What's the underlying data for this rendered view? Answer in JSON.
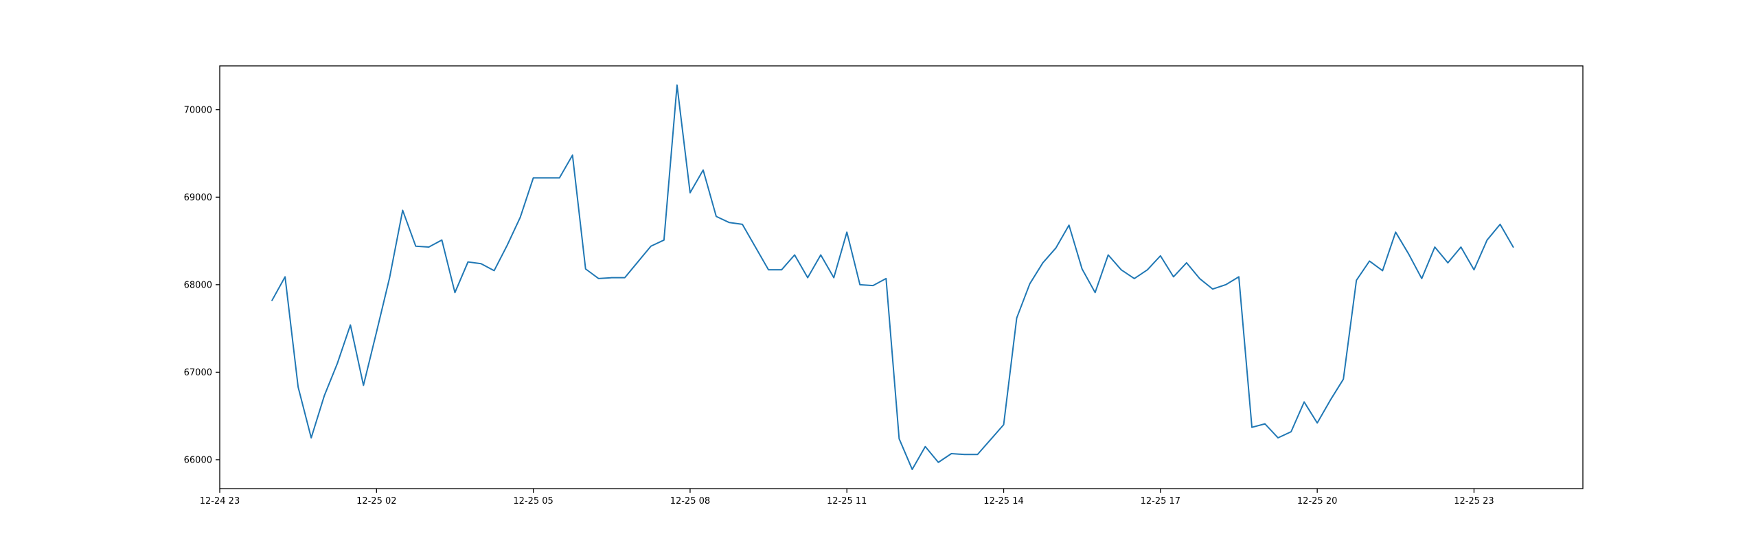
{
  "chart_data": {
    "type": "line",
    "title": "",
    "xlabel": "",
    "ylabel": "",
    "xlim": [
      "2024-12-24 23:00",
      "2024-12-26 01:05"
    ],
    "ylim": [
      65670,
      70500
    ],
    "grid": false,
    "x_ticks": [
      {
        "value": "2024-12-24 23:00",
        "label": "12-24 23"
      },
      {
        "value": "2024-12-25 02:00",
        "label": "12-25 02"
      },
      {
        "value": "2024-12-25 05:00",
        "label": "12-25 05"
      },
      {
        "value": "2024-12-25 08:00",
        "label": "12-25 08"
      },
      {
        "value": "2024-12-25 11:00",
        "label": "12-25 11"
      },
      {
        "value": "2024-12-25 14:00",
        "label": "12-25 14"
      },
      {
        "value": "2024-12-25 17:00",
        "label": "12-25 17"
      },
      {
        "value": "2024-12-25 20:00",
        "label": "12-25 20"
      },
      {
        "value": "2024-12-25 23:00",
        "label": "12-25 23"
      }
    ],
    "y_ticks": [
      66000,
      67000,
      68000,
      69000,
      70000
    ],
    "series": [
      {
        "name": "",
        "color": "#1f77b4",
        "x": [
          "2024-12-25 00:00",
          "2024-12-25 00:15",
          "2024-12-25 00:30",
          "2024-12-25 00:45",
          "2024-12-25 01:00",
          "2024-12-25 01:15",
          "2024-12-25 01:30",
          "2024-12-25 01:45",
          "2024-12-25 02:00",
          "2024-12-25 02:15",
          "2024-12-25 02:30",
          "2024-12-25 02:45",
          "2024-12-25 03:00",
          "2024-12-25 03:15",
          "2024-12-25 03:30",
          "2024-12-25 03:45",
          "2024-12-25 04:00",
          "2024-12-25 04:15",
          "2024-12-25 04:30",
          "2024-12-25 04:45",
          "2024-12-25 05:00",
          "2024-12-25 05:15",
          "2024-12-25 05:30",
          "2024-12-25 05:45",
          "2024-12-25 06:00",
          "2024-12-25 06:15",
          "2024-12-25 06:30",
          "2024-12-25 06:45",
          "2024-12-25 07:00",
          "2024-12-25 07:15",
          "2024-12-25 07:30",
          "2024-12-25 07:45",
          "2024-12-25 08:00",
          "2024-12-25 08:15",
          "2024-12-25 08:30",
          "2024-12-25 08:45",
          "2024-12-25 09:00",
          "2024-12-25 09:15",
          "2024-12-25 09:30",
          "2024-12-25 09:45",
          "2024-12-25 10:00",
          "2024-12-25 10:15",
          "2024-12-25 10:30",
          "2024-12-25 10:45",
          "2024-12-25 11:00",
          "2024-12-25 11:15",
          "2024-12-25 11:30",
          "2024-12-25 11:45",
          "2024-12-25 12:00",
          "2024-12-25 12:15",
          "2024-12-25 12:30",
          "2024-12-25 12:45",
          "2024-12-25 13:00",
          "2024-12-25 13:15",
          "2024-12-25 13:30",
          "2024-12-25 13:45",
          "2024-12-25 14:00",
          "2024-12-25 14:15",
          "2024-12-25 14:30",
          "2024-12-25 14:45",
          "2024-12-25 15:00",
          "2024-12-25 15:15",
          "2024-12-25 15:30",
          "2024-12-25 15:45",
          "2024-12-25 16:00",
          "2024-12-25 16:15",
          "2024-12-25 16:30",
          "2024-12-25 16:45",
          "2024-12-25 17:00",
          "2024-12-25 17:15",
          "2024-12-25 17:30",
          "2024-12-25 17:45",
          "2024-12-25 18:00",
          "2024-12-25 18:15",
          "2024-12-25 18:30",
          "2024-12-25 18:45",
          "2024-12-25 19:00",
          "2024-12-25 19:15",
          "2024-12-25 19:30",
          "2024-12-25 19:45",
          "2024-12-25 20:00",
          "2024-12-25 20:15",
          "2024-12-25 20:30",
          "2024-12-25 20:45",
          "2024-12-25 21:00",
          "2024-12-25 21:15",
          "2024-12-25 21:30",
          "2024-12-25 21:45",
          "2024-12-25 22:00",
          "2024-12-25 22:15",
          "2024-12-25 22:30",
          "2024-12-25 22:45",
          "2024-12-25 23:00",
          "2024-12-25 23:15",
          "2024-12-25 23:30",
          "2024-12-25 23:45"
        ],
        "values": [
          67820,
          68090,
          66830,
          66250,
          66730,
          67100,
          67540,
          66850,
          67460,
          68080,
          68850,
          68440,
          68430,
          68510,
          67910,
          68260,
          68240,
          68160,
          68450,
          68770,
          69220,
          69220,
          69220,
          69480,
          68180,
          68070,
          68080,
          68080,
          68260,
          68440,
          68510,
          70280,
          69050,
          69310,
          68780,
          68710,
          68690,
          68430,
          68170,
          68170,
          68340,
          68080,
          68340,
          68080,
          68600,
          68000,
          67990,
          68070,
          66240,
          65890,
          66150,
          65970,
          66070,
          66060,
          66060,
          66230,
          66400,
          67620,
          68010,
          68250,
          68420,
          68680,
          68180,
          67910,
          68340,
          68170,
          68070,
          68170,
          68330,
          68090,
          68250,
          68070,
          67950,
          68000,
          68090,
          66370,
          66410,
          66250,
          66320,
          66660,
          66420,
          66680,
          66920,
          68050,
          68270,
          68160,
          68600,
          68350,
          68070,
          68430,
          68250,
          68430,
          68170,
          68510,
          68690,
          68430
        ]
      }
    ]
  }
}
